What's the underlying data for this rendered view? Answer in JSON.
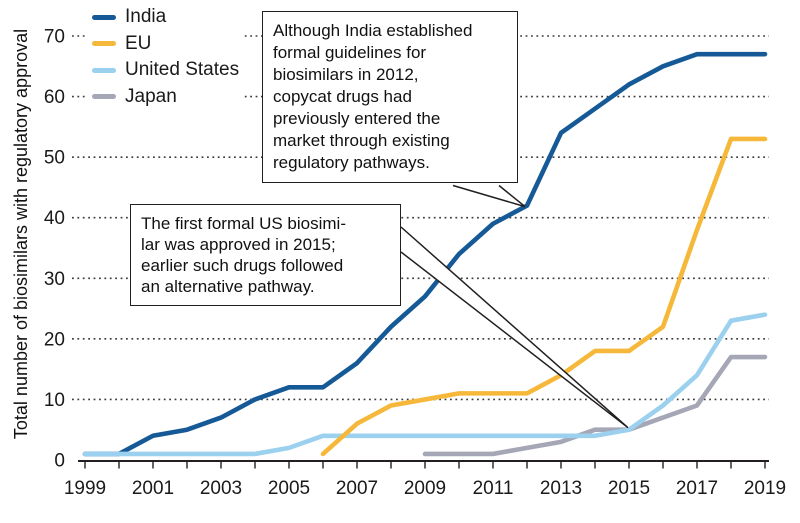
{
  "chart_data": {
    "type": "line",
    "title": "",
    "xlabel": "",
    "ylabel": "Total number of biosimilars with regulatory approval",
    "xlim": [
      1999,
      2019
    ],
    "ylim": [
      0,
      70
    ],
    "y_ticks": [
      0,
      10,
      20,
      30,
      40,
      50,
      60,
      70
    ],
    "x_tick_labels": [
      "1999",
      "2001",
      "2003",
      "2005",
      "2007",
      "2009",
      "2011",
      "2013",
      "2015",
      "2017",
      "2019"
    ],
    "x_minor_tick_every_year": true,
    "grid": "horizontal-dotted",
    "legend_position": "top-left-inside",
    "series": [
      {
        "name": "India",
        "color": "#155a96",
        "z": 1,
        "x": [
          1999,
          2000,
          2001,
          2002,
          2003,
          2004,
          2005,
          2006,
          2007,
          2008,
          2009,
          2010,
          2011,
          2012,
          2013,
          2014,
          2015,
          2016,
          2017,
          2018,
          2019
        ],
        "values": [
          1,
          1,
          4,
          5,
          7,
          10,
          12,
          12,
          16,
          22,
          27,
          34,
          39,
          42,
          54,
          58,
          62,
          65,
          67,
          67,
          67
        ]
      },
      {
        "name": "EU",
        "color": "#f6b83a",
        "z": 4,
        "x": [
          2006,
          2007,
          2008,
          2009,
          2010,
          2011,
          2012,
          2013,
          2014,
          2015,
          2016,
          2017,
          2018,
          2019
        ],
        "values": [
          1,
          6,
          9,
          10,
          11,
          11,
          11,
          14,
          18,
          18,
          22,
          38,
          53,
          53
        ]
      },
      {
        "name": "United States",
        "color": "#9bd0ee",
        "z": 3,
        "x": [
          1999,
          2000,
          2001,
          2002,
          2003,
          2004,
          2005,
          2006,
          2007,
          2008,
          2009,
          2010,
          2011,
          2012,
          2013,
          2014,
          2015,
          2016,
          2017,
          2018,
          2019
        ],
        "values": [
          1,
          1,
          1,
          1,
          1,
          1,
          2,
          4,
          4,
          4,
          4,
          4,
          4,
          4,
          4,
          4,
          5,
          9,
          14,
          23,
          24
        ]
      },
      {
        "name": "Japan",
        "color": "#a5a7b6",
        "z": 2,
        "x": [
          2009,
          2010,
          2011,
          2012,
          2013,
          2014,
          2015,
          2016,
          2017,
          2018,
          2019
        ],
        "values": [
          1,
          1,
          1,
          2,
          3,
          5,
          5,
          7,
          9,
          17,
          17
        ]
      }
    ],
    "annotations": [
      {
        "id": "india-2012",
        "text": "Although India established\nformal guidelines for\nbiosimilars in 2012,\ncopycat drugs had\npreviously entered the\nmarket through existing\nregulatory pathways.",
        "points_to": {
          "series": "India",
          "year": 2012,
          "value": 42
        }
      },
      {
        "id": "us-2015",
        "text": "The first formal US biosimi-\nlar was approved in 2015;\nearlier such drugs followed\nan alternative pathway.",
        "points_to": {
          "series": "United States",
          "year": 2015,
          "value": 5
        }
      }
    ]
  },
  "legend": {
    "items": [
      {
        "label": "India"
      },
      {
        "label": "EU"
      },
      {
        "label": "United States"
      },
      {
        "label": "Japan"
      }
    ]
  }
}
